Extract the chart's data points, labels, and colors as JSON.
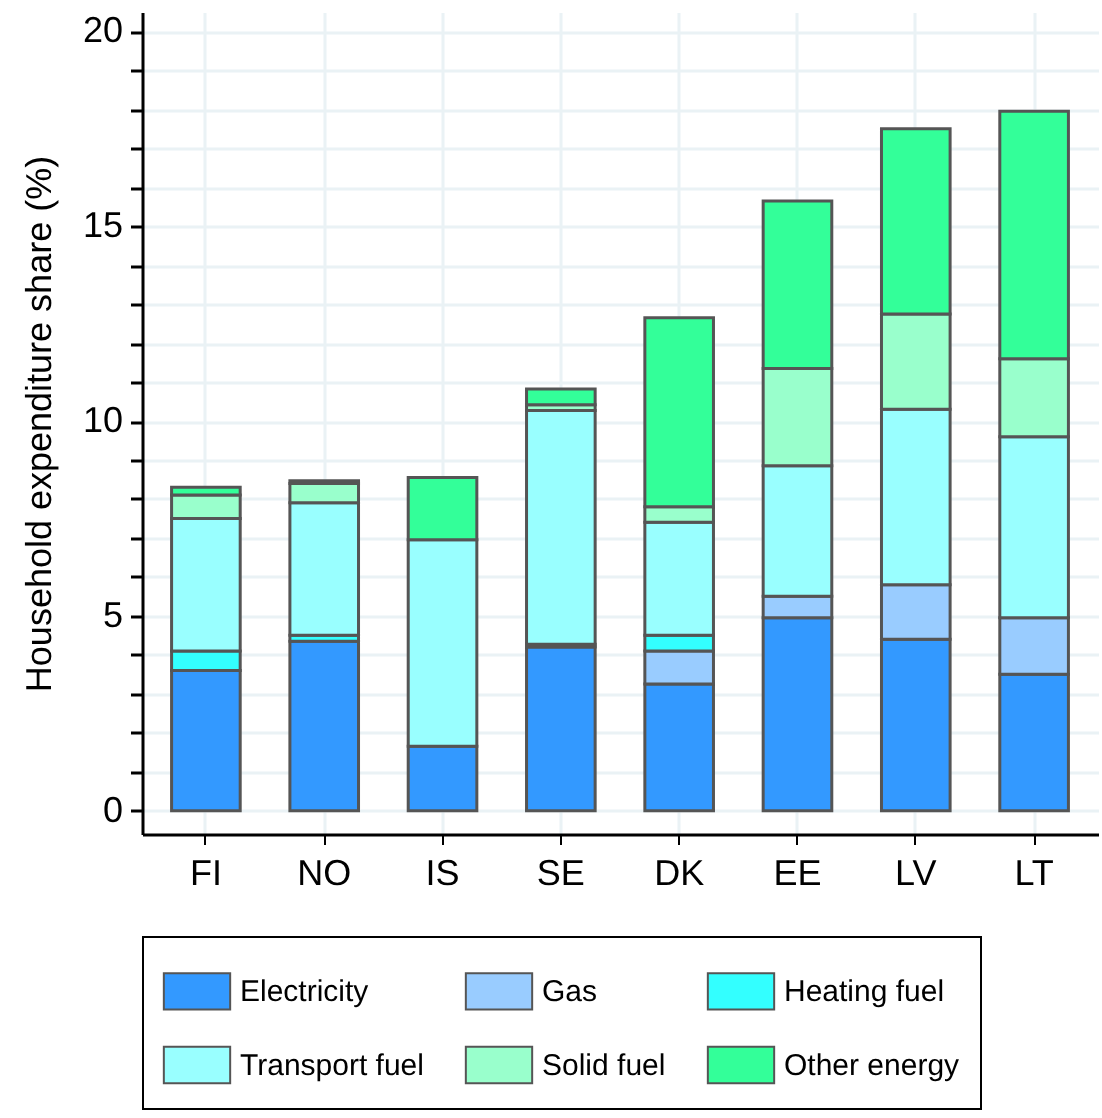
{
  "chart_data": {
    "type": "bar",
    "stacked": true,
    "ylabel": "Household expenditure share (%)",
    "categories": [
      "FI",
      "NO",
      "IS",
      "SE",
      "DK",
      "EE",
      "LV",
      "LT"
    ],
    "series": [
      {
        "name": "Electricity",
        "color": "#3399ff",
        "values": [
          3.6,
          4.35,
          1.65,
          4.2,
          3.25,
          4.95,
          4.4,
          3.5
        ]
      },
      {
        "name": "Gas",
        "color": "#99ccff",
        "values": [
          null,
          null,
          null,
          0.07,
          0.85,
          0.55,
          1.4,
          1.45
        ]
      },
      {
        "name": "Heating fuel",
        "color": "#33ffff",
        "values": [
          0.5,
          0.15,
          null,
          null,
          0.4,
          null,
          null,
          null
        ]
      },
      {
        "name": "Transport fuel",
        "color": "#99ffff",
        "values": [
          3.4,
          3.4,
          5.3,
          6.0,
          2.9,
          3.35,
          4.5,
          4.65
        ]
      },
      {
        "name": "Solid fuel",
        "color": "#99ffcc",
        "values": [
          0.6,
          0.5,
          null,
          0.15,
          0.4,
          2.5,
          2.45,
          2.0
        ]
      },
      {
        "name": "Other energy",
        "color": "#33ff99",
        "values": [
          0.2,
          0.07,
          1.6,
          0.4,
          4.85,
          4.3,
          4.75,
          6.35
        ]
      }
    ],
    "ylim": [
      -0.6,
      20.5
    ],
    "yticks": [
      0,
      {
        "value": 1,
        "label": null
      },
      {
        "value": 2,
        "label": null
      },
      {
        "value": 3,
        "label": null
      },
      {
        "value": 4,
        "label": null
      },
      5,
      {
        "value": 6,
        "label": null
      },
      {
        "value": 7,
        "label": null
      },
      {
        "value": 8,
        "label": null
      },
      {
        "value": 9,
        "label": null
      },
      10,
      {
        "value": 11,
        "label": null
      },
      {
        "value": 12,
        "label": null
      },
      {
        "value": 13,
        "label": null
      },
      {
        "value": 14,
        "label": null
      },
      15,
      {
        "value": 16,
        "label": null
      },
      {
        "value": 17,
        "label": null
      },
      {
        "value": 18,
        "label": null
      },
      {
        "value": 19,
        "label": null
      },
      20
    ],
    "grid": true,
    "legend": "bottom"
  }
}
